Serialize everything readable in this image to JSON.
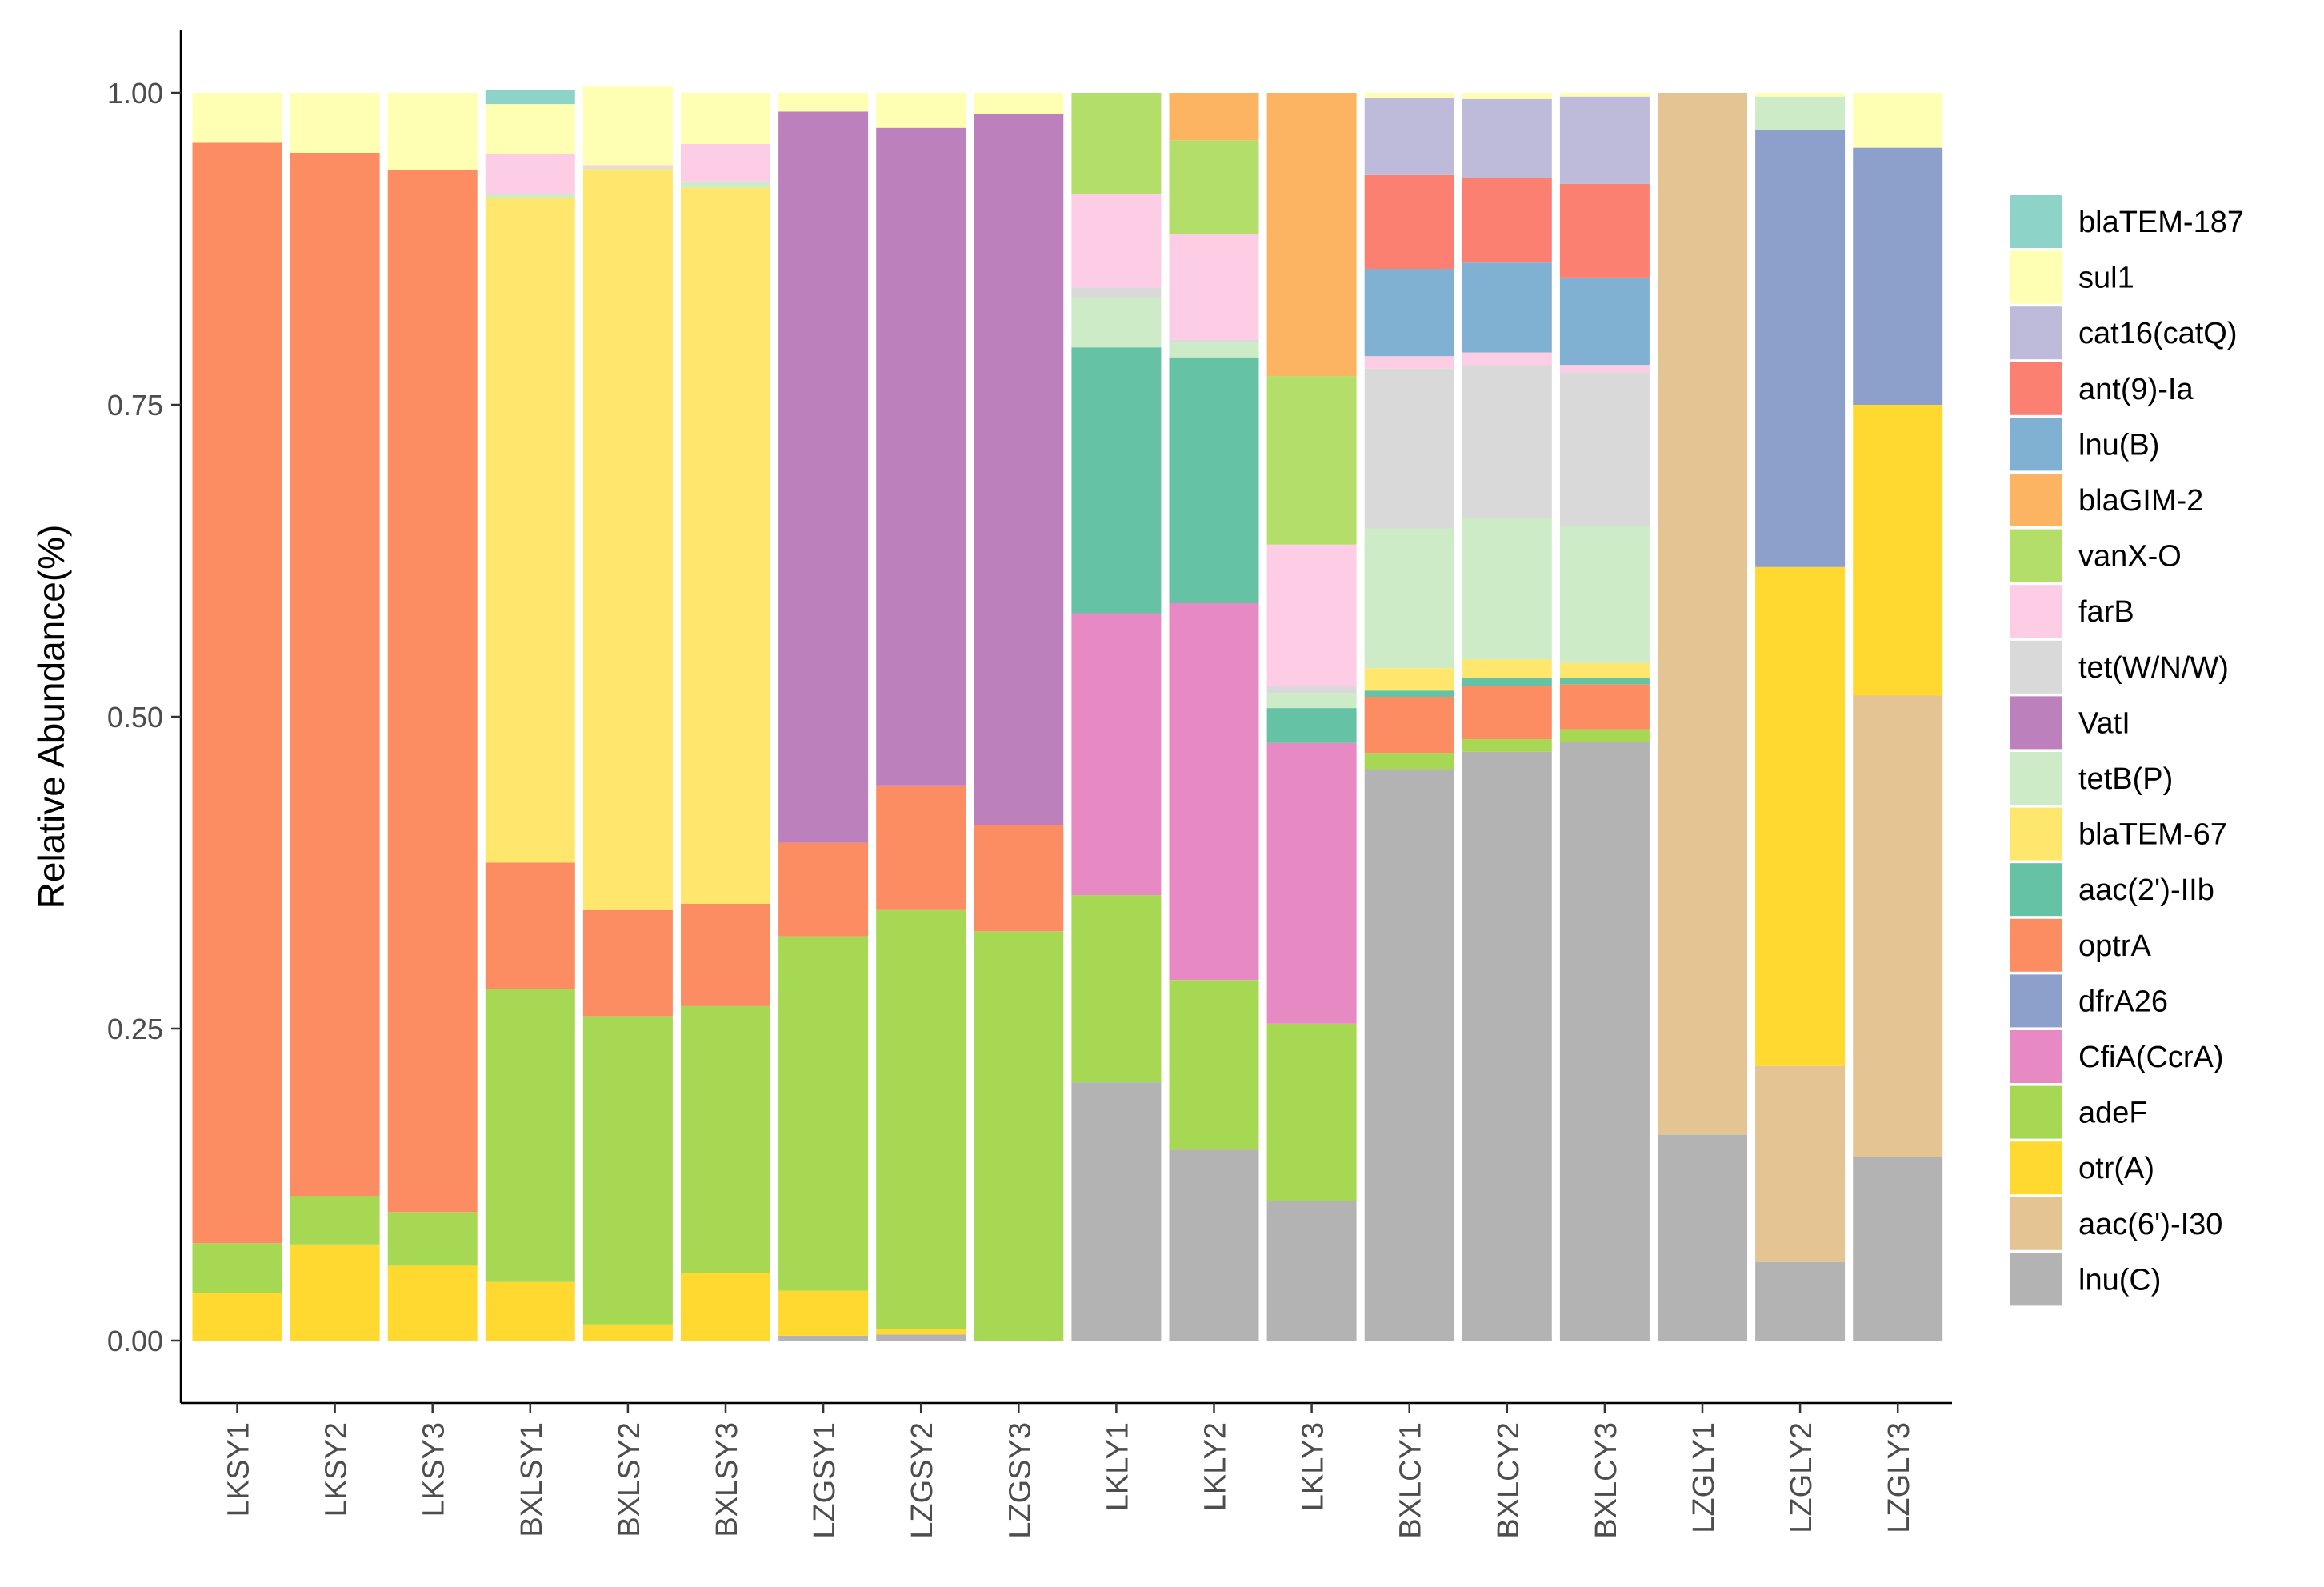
{
  "chart_data": {
    "type": "bar",
    "stacked": true,
    "title": "",
    "xlabel": "",
    "ylabel": "Relative Abundance(%)",
    "ylim": [
      0,
      1
    ],
    "yticks": [
      0,
      0.25,
      0.5,
      0.75,
      1
    ],
    "ytick_labels": [
      "0.00",
      "0.25",
      "0.50",
      "0.75",
      "1.00"
    ],
    "grid": false,
    "legend_position": "right",
    "categories": [
      "LKSY1",
      "LKSY2",
      "LKSY3",
      "BXLSY1",
      "BXLSY2",
      "BXLSY3",
      "LZGSY1",
      "LZGSY2",
      "LZGSY3",
      "LKLY1",
      "LKLY2",
      "LKLY3",
      "BXLCY1",
      "BXLCY2",
      "BXLCY3",
      "LZGLY1",
      "LZGLY2",
      "LZGLY3"
    ],
    "series": [
      {
        "name": "lnu(C)",
        "color": "#b3b3b3",
        "values": [
          0,
          0,
          0,
          0,
          0,
          0,
          0.004,
          0.005,
          0,
          0.207,
          0.153,
          0.112,
          0.458,
          0.472,
          0.48,
          0.165,
          0.063,
          0.147
        ]
      },
      {
        "name": "aac(6')-I30",
        "color": "#e5c494",
        "values": [
          0,
          0,
          0,
          0,
          0,
          0,
          0,
          0,
          0,
          0,
          0,
          0,
          0,
          0,
          0,
          0.835,
          0.157,
          0.37
        ]
      },
      {
        "name": "otr(A)",
        "color": "#ffd92f",
        "values": [
          0.038,
          0.077,
          0.06,
          0.047,
          0.013,
          0.054,
          0.036,
          0.004,
          0,
          0,
          0,
          0,
          0,
          0,
          0,
          0,
          0.4,
          0.233
        ]
      },
      {
        "name": "adeF",
        "color": "#a6d854",
        "values": [
          0.04,
          0.039,
          0.043,
          0.235,
          0.247,
          0.214,
          0.284,
          0.336,
          0.328,
          0.15,
          0.136,
          0.142,
          0.013,
          0.01,
          0.01,
          0,
          0,
          0
        ]
      },
      {
        "name": "CfiA(CcrA)",
        "color": "#e78ac3",
        "values": [
          0,
          0,
          0,
          0,
          0,
          0,
          0,
          0,
          0,
          0.226,
          0.302,
          0.225,
          0,
          0,
          0,
          0,
          0,
          0
        ]
      },
      {
        "name": "dfrA26",
        "color": "#8da0cb",
        "values": [
          0,
          0,
          0,
          0,
          0,
          0,
          0,
          0,
          0,
          0,
          0,
          0,
          0,
          0,
          0,
          0,
          0.35,
          0.206
        ]
      },
      {
        "name": "optrA",
        "color": "#fc8d62",
        "values": [
          0.882,
          0.836,
          0.835,
          0.101,
          0.085,
          0.082,
          0.075,
          0.1,
          0.085,
          0,
          0,
          0,
          0.045,
          0.043,
          0.036,
          0,
          0,
          0
        ]
      },
      {
        "name": "aac(2')-IIb",
        "color": "#66c2a5",
        "values": [
          0,
          0,
          0,
          0,
          0,
          0,
          0,
          0,
          0,
          0.213,
          0.197,
          0.028,
          0.005,
          0.006,
          0.005,
          0,
          0,
          0
        ]
      },
      {
        "name": "blaTEM-67",
        "color": "#ffe76e",
        "values": [
          0,
          0,
          0,
          0.533,
          0.594,
          0.574,
          0,
          0,
          0,
          0,
          0,
          0,
          0.018,
          0.015,
          0.012,
          0,
          0,
          0
        ]
      },
      {
        "name": "tetB(P)",
        "color": "#cdebc7",
        "values": [
          0,
          0,
          0,
          0.003,
          0.001,
          0.005,
          0,
          0,
          0,
          0.04,
          0.012,
          0.012,
          0.112,
          0.113,
          0.11,
          0,
          0.027,
          0
        ]
      },
      {
        "name": "VatI",
        "color": "#bc80bd",
        "values": [
          0,
          0,
          0,
          0,
          0,
          0,
          0.586,
          0.527,
          0.57,
          0,
          0,
          0,
          0,
          0,
          0,
          0,
          0,
          0
        ]
      },
      {
        "name": "tet(W/N/W)",
        "color": "#d9d9d9",
        "values": [
          0,
          0,
          0,
          0,
          0,
          0,
          0,
          0,
          0,
          0.008,
          0.002,
          0.006,
          0.128,
          0.123,
          0.123,
          0,
          0,
          0
        ]
      },
      {
        "name": "farB",
        "color": "#fccde5",
        "values": [
          0,
          0,
          0,
          0.032,
          0.002,
          0.03,
          0,
          0,
          0,
          0.075,
          0.085,
          0.113,
          0.01,
          0.01,
          0.006,
          0,
          0,
          0
        ]
      },
      {
        "name": "vanX-O",
        "color": "#b3de69",
        "values": [
          0,
          0,
          0,
          0,
          0,
          0,
          0,
          0,
          0,
          0.081,
          0.075,
          0.135,
          0,
          0,
          0,
          0,
          0,
          0
        ]
      },
      {
        "name": "blaGIM-2",
        "color": "#fdb462",
        "values": [
          0,
          0,
          0,
          0,
          0,
          0,
          0,
          0,
          0,
          0,
          0.038,
          0.227,
          0,
          0,
          0,
          0,
          0,
          0
        ]
      },
      {
        "name": "lnu(B)",
        "color": "#80b1d3",
        "values": [
          0,
          0,
          0,
          0,
          0,
          0,
          0,
          0,
          0,
          0,
          0,
          0,
          0.07,
          0.072,
          0.07,
          0,
          0,
          0
        ]
      },
      {
        "name": "ant(9)-Ia",
        "color": "#fb8072",
        "values": [
          0,
          0,
          0,
          0,
          0,
          0,
          0,
          0,
          0,
          0,
          0,
          0,
          0.075,
          0.068,
          0.075,
          0,
          0,
          0
        ]
      },
      {
        "name": "cat16(catQ)",
        "color": "#bebada",
        "values": [
          0,
          0,
          0,
          0,
          0,
          0,
          0,
          0,
          0,
          0,
          0,
          0,
          0.062,
          0.063,
          0.07,
          0,
          0,
          0
        ]
      },
      {
        "name": "sul1",
        "color": "#ffffb3",
        "values": [
          0.04,
          0.048,
          0.062,
          0.04,
          0.063,
          0.041,
          0.015,
          0.028,
          0.017,
          0,
          0,
          0,
          0.004,
          0.005,
          0.003,
          0,
          0.003,
          0.044
        ]
      },
      {
        "name": "blaTEM-187",
        "color": "#8dd3c7",
        "values": [
          0,
          0,
          0,
          0.011,
          0,
          0,
          0,
          0,
          0,
          0,
          0,
          0,
          0,
          0,
          0,
          0,
          0,
          0
        ]
      }
    ],
    "legend_order": [
      "blaTEM-187",
      "sul1",
      "cat16(catQ)",
      "ant(9)-Ia",
      "lnu(B)",
      "blaGIM-2",
      "vanX-O",
      "farB",
      "tet(W/N/W)",
      "VatI",
      "tetB(P)",
      "blaTEM-67",
      "aac(2')-IIb",
      "optrA",
      "dfrA26",
      "CfiA(CcrA)",
      "adeF",
      "otr(A)",
      "aac(6')-I30",
      "lnu(C)"
    ]
  }
}
